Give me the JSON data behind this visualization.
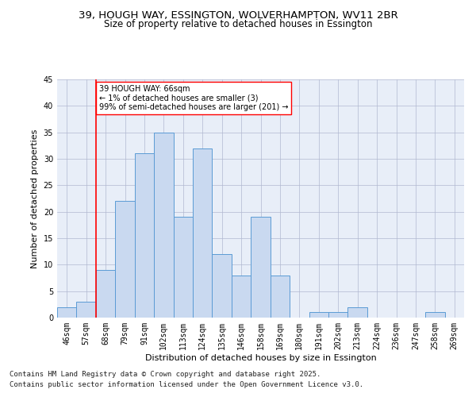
{
  "title_line1": "39, HOUGH WAY, ESSINGTON, WOLVERHAMPTON, WV11 2BR",
  "title_line2": "Size of property relative to detached houses in Essington",
  "xlabel": "Distribution of detached houses by size in Essington",
  "ylabel": "Number of detached properties",
  "bin_labels": [
    "46sqm",
    "57sqm",
    "68sqm",
    "79sqm",
    "91sqm",
    "102sqm",
    "113sqm",
    "124sqm",
    "135sqm",
    "146sqm",
    "158sqm",
    "169sqm",
    "180sqm",
    "191sqm",
    "202sqm",
    "213sqm",
    "224sqm",
    "236sqm",
    "247sqm",
    "258sqm",
    "269sqm"
  ],
  "bar_values": [
    2,
    3,
    9,
    22,
    31,
    35,
    19,
    32,
    12,
    8,
    19,
    8,
    0,
    1,
    1,
    2,
    0,
    0,
    0,
    1,
    0
  ],
  "bar_color": "#c9d9f0",
  "bar_edge_color": "#5b9bd5",
  "annotation_text": "39 HOUGH WAY: 66sqm\n← 1% of detached houses are smaller (3)\n99% of semi-detached houses are larger (201) →",
  "annotation_box_color": "white",
  "annotation_box_edge_color": "red",
  "vline_color": "red",
  "vline_x_index": 2,
  "ylim": [
    0,
    45
  ],
  "yticks": [
    0,
    5,
    10,
    15,
    20,
    25,
    30,
    35,
    40,
    45
  ],
  "background_color": "#e8eef8",
  "grid_color": "#b0b8d0",
  "footer_line1": "Contains HM Land Registry data © Crown copyright and database right 2025.",
  "footer_line2": "Contains public sector information licensed under the Open Government Licence v3.0.",
  "title_fontsize": 9.5,
  "subtitle_fontsize": 8.5,
  "axis_label_fontsize": 8,
  "tick_fontsize": 7,
  "annotation_fontsize": 7,
  "footer_fontsize": 6.5
}
